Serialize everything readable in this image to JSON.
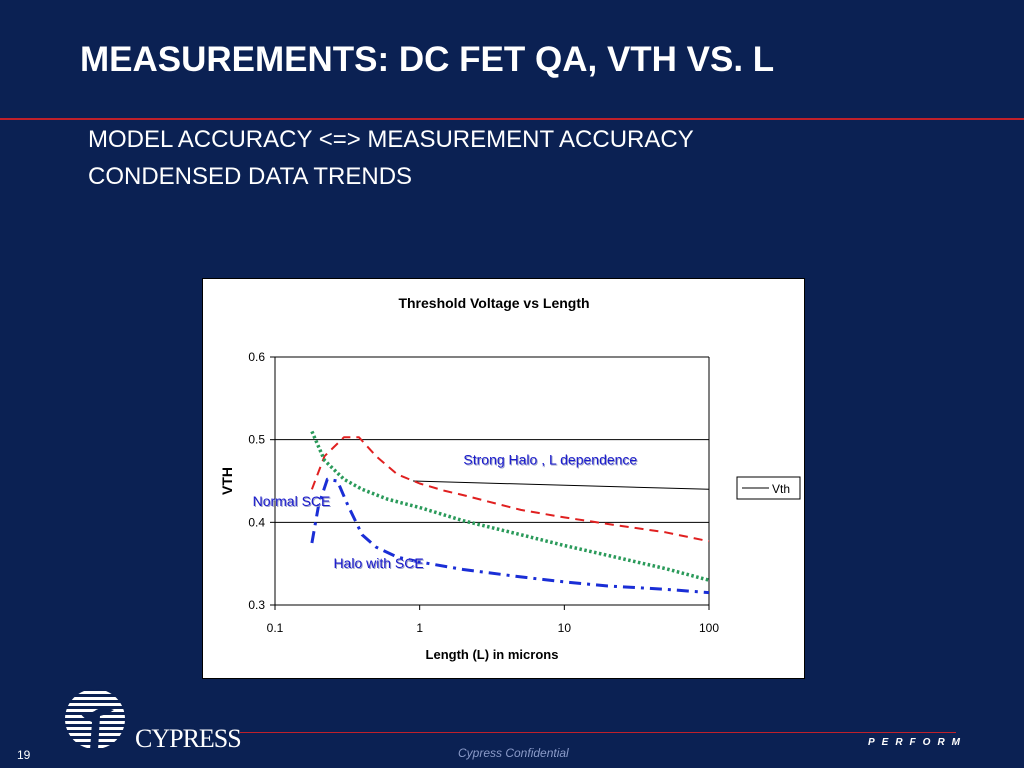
{
  "slide": {
    "title": "MEASUREMENTS: DC FET QA, VTH VS. L",
    "bullets": [
      "MODEL ACCURACY <=> MEASUREMENT ACCURACY",
      "CONDENSED DATA TRENDS"
    ],
    "slide_number": "19",
    "confidential": "Cypress Confidential",
    "tagline": "PERFORM",
    "logo_text": "CYPRESS",
    "colors": {
      "background": "#0b2153",
      "accent_rule": "#c0202a"
    }
  },
  "chart_data": {
    "type": "line",
    "title": "Threshold Voltage vs Length",
    "xlabel": "Length (L) in microns",
    "ylabel": "VTH",
    "x_scale": "log",
    "xlim": [
      0.1,
      100
    ],
    "ylim": [
      0.3,
      0.6
    ],
    "x_ticks": [
      "0.1",
      "1",
      "10",
      "100"
    ],
    "y_ticks": [
      "0.3",
      "0.4",
      "0.5",
      "0.6"
    ],
    "y_gridlines": [
      0.4,
      0.5,
      0.6
    ],
    "legend": {
      "position": "right",
      "entries": [
        "Vth"
      ]
    },
    "series": [
      {
        "name": "Vth",
        "color": "#000000",
        "style": "solid",
        "x": [
          0.9,
          100
        ],
        "y": [
          0.45,
          0.44
        ]
      },
      {
        "color": "#e02020",
        "style": "dashed",
        "x": [
          0.18,
          0.22,
          0.3,
          0.38,
          0.5,
          0.7,
          1,
          1.5,
          2,
          3,
          5,
          10,
          20,
          50,
          100
        ],
        "y": [
          0.44,
          0.48,
          0.503,
          0.503,
          0.48,
          0.458,
          0.447,
          0.438,
          0.433,
          0.425,
          0.415,
          0.406,
          0.398,
          0.388,
          0.377
        ]
      },
      {
        "color": "#2a9a5a",
        "style": "dotted",
        "x": [
          0.18,
          0.22,
          0.3,
          0.4,
          0.6,
          1,
          2,
          5,
          10,
          20,
          50,
          100
        ],
        "y": [
          0.51,
          0.475,
          0.452,
          0.44,
          0.428,
          0.418,
          0.402,
          0.385,
          0.372,
          0.36,
          0.344,
          0.33
        ]
      },
      {
        "color": "#1a2ed6",
        "style": "dashdot",
        "x": [
          0.18,
          0.2,
          0.23,
          0.27,
          0.32,
          0.4,
          0.5,
          0.7,
          1,
          2,
          5,
          10,
          20,
          50,
          100
        ],
        "y": [
          0.375,
          0.42,
          0.452,
          0.45,
          0.42,
          0.385,
          0.37,
          0.358,
          0.352,
          0.343,
          0.334,
          0.328,
          0.323,
          0.319,
          0.315
        ]
      }
    ],
    "annotations": [
      {
        "text": "Strong Halo , L dependence",
        "x": 8,
        "y": 0.47,
        "color": "#1a1acc"
      },
      {
        "text": "Normal SCE",
        "x": 0.13,
        "y": 0.42,
        "color": "#1a1acc"
      },
      {
        "text": "Halo with SCE",
        "x": 0.52,
        "y": 0.345,
        "color": "#1a1acc"
      }
    ]
  }
}
